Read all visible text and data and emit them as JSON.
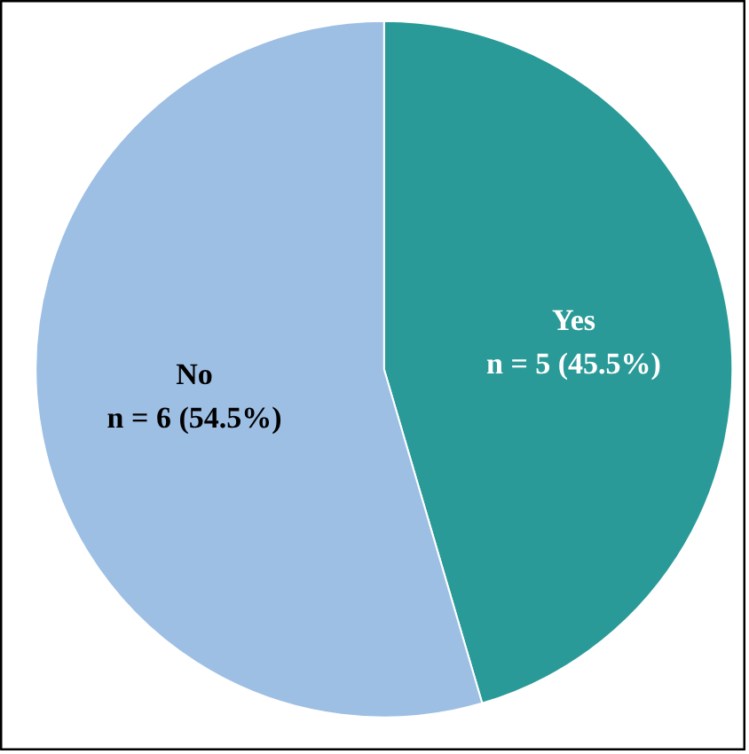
{
  "chart_data": {
    "type": "pie",
    "categories": [
      "Yes",
      "No"
    ],
    "values": [
      5,
      6
    ],
    "colors": [
      "#2a9a98",
      "#9dbfe4"
    ],
    "value_labels": [
      "n = 5 (45.5%)",
      "n = 6 (54.5%)"
    ]
  }
}
